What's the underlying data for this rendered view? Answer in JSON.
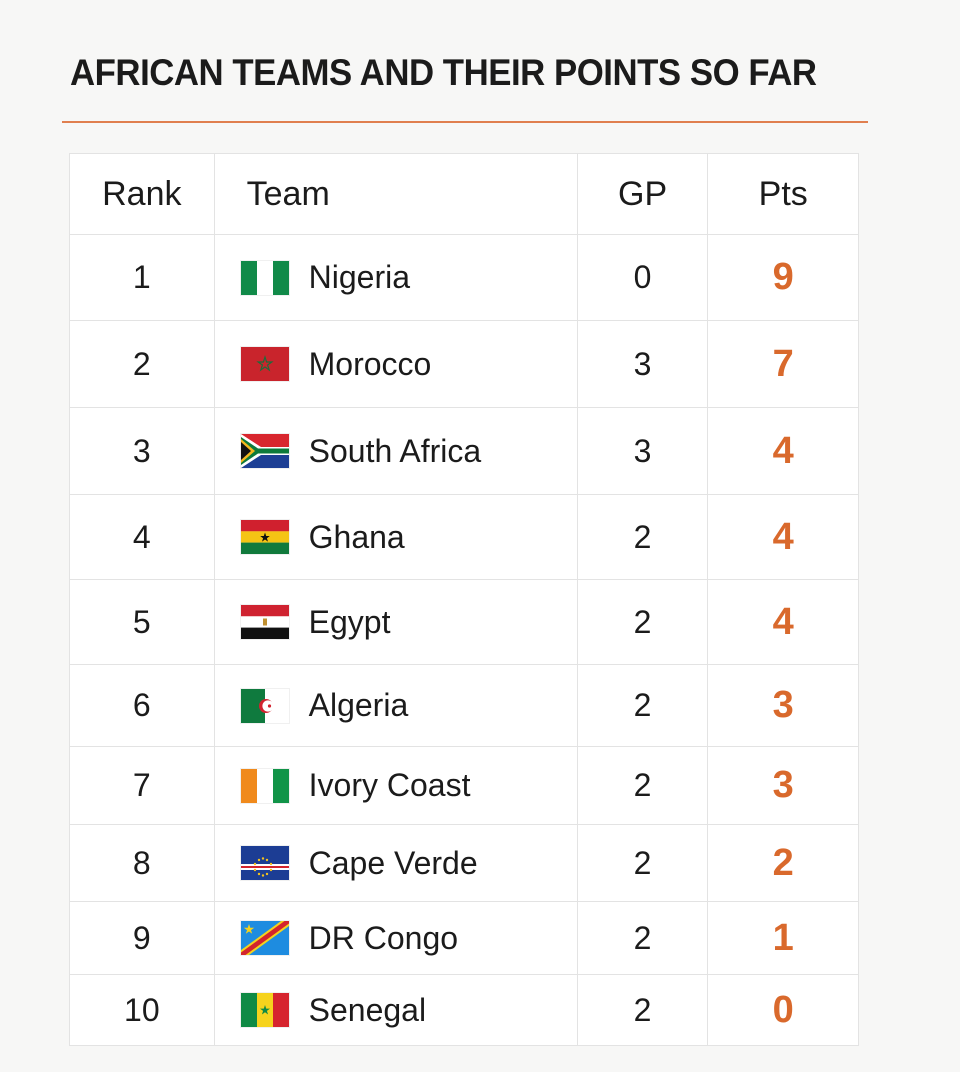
{
  "title": "AFRICAN TEAMS AND THEIR POINTS SO FAR",
  "accent_color": "#d9692c",
  "headers": {
    "rank": "Rank",
    "team": "Team",
    "gp": "GP",
    "pts": "Pts"
  },
  "rows": [
    {
      "rank": "1",
      "team": "Nigeria",
      "gp": "0",
      "pts": "9",
      "flag": "nigeria-flag-icon"
    },
    {
      "rank": "2",
      "team": "Morocco",
      "gp": "3",
      "pts": "7",
      "flag": "morocco-flag-icon"
    },
    {
      "rank": "3",
      "team": "South Africa",
      "gp": "3",
      "pts": "4",
      "flag": "south-africa-flag-icon"
    },
    {
      "rank": "4",
      "team": "Ghana",
      "gp": "2",
      "pts": "4",
      "flag": "ghana-flag-icon"
    },
    {
      "rank": "5",
      "team": "Egypt",
      "gp": "2",
      "pts": "4",
      "flag": "egypt-flag-icon"
    },
    {
      "rank": "6",
      "team": "Algeria",
      "gp": "2",
      "pts": "3",
      "flag": "algeria-flag-icon"
    },
    {
      "rank": "7",
      "team": "Ivory Coast",
      "gp": "2",
      "pts": "3",
      "flag": "ivory-coast-flag-icon"
    },
    {
      "rank": "8",
      "team": "Cape Verde",
      "gp": "2",
      "pts": "2",
      "flag": "cape-verde-flag-icon"
    },
    {
      "rank": "9",
      "team": "DR Congo",
      "gp": "2",
      "pts": "1",
      "flag": "dr-congo-flag-icon"
    },
    {
      "rank": "10",
      "team": "Senegal",
      "gp": "2",
      "pts": "0",
      "flag": "senegal-flag-icon"
    }
  ]
}
